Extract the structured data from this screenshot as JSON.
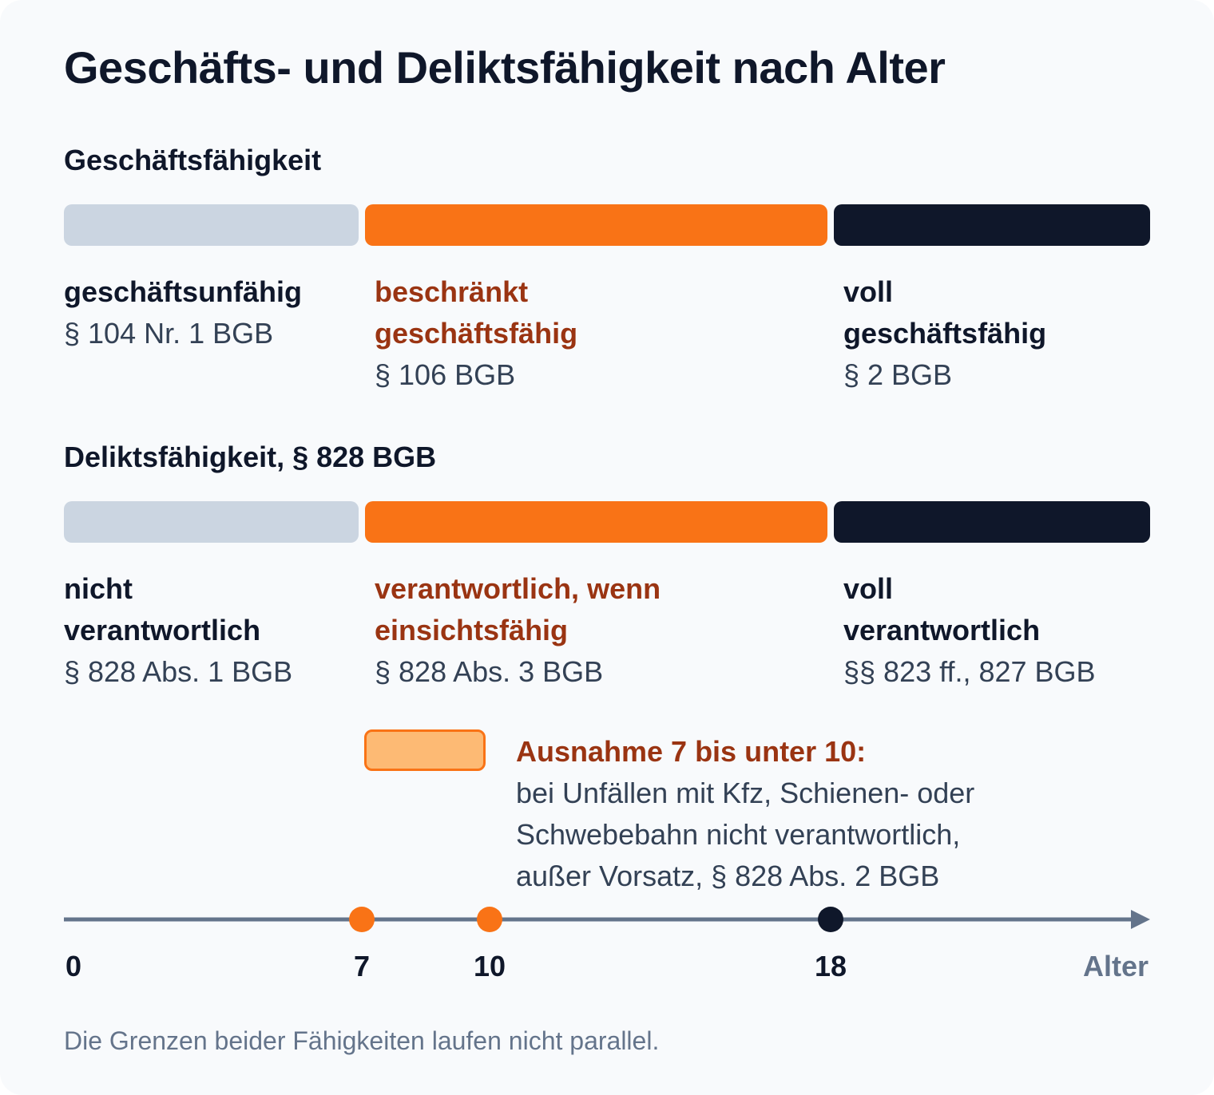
{
  "title": "Geschäfts- und Deliktsfähigkeit nach Alter",
  "colors": {
    "none": "#cbd5e1",
    "limited": "#f97316",
    "full": "#0f172a",
    "accent_text": "#9a3412",
    "exception_fill": "#fdba74",
    "axis": "#64748b"
  },
  "sections": [
    {
      "title": "Geschäftsfähigkeit",
      "stages": [
        {
          "line1": "geschäftsunfähig",
          "line2": "",
          "ref": "§ 104 Nr. 1 BGB"
        },
        {
          "line1": "beschränkt",
          "line2": "geschäftsfähig",
          "ref": "§ 106 BGB"
        },
        {
          "line1": "voll",
          "line2": "geschäftsfähig",
          "ref": "§ 2 BGB"
        }
      ]
    },
    {
      "title": "Deliktsfähigkeit, § 828 BGB",
      "stages": [
        {
          "line1": "nicht",
          "line2": "verantwortlich",
          "ref": "§ 828 Abs. 1 BGB"
        },
        {
          "line1": "verantwortlich, wenn",
          "line2": "einsichtsfähig",
          "ref": "§ 828 Abs. 3 BGB"
        },
        {
          "line1": "voll",
          "line2": "verantwortlich",
          "ref": "§§ 823 ff., 827 BGB"
        }
      ]
    }
  ],
  "exception": {
    "title": "Ausnahme 7 bis unter 10:",
    "lines": [
      "bei Unfällen mit Kfz, Schienen- oder",
      "Schwebebahn nicht verantwortlich,",
      "außer Vorsatz, § 828 Abs. 2 BGB"
    ]
  },
  "axis": {
    "label": "Alter",
    "ticks": [
      "0",
      "7",
      "10",
      "18"
    ],
    "markers": [
      {
        "age": 7,
        "color": "#f97316"
      },
      {
        "age": 10,
        "color": "#f97316"
      },
      {
        "age": 18,
        "color": "#0f172a"
      }
    ]
  },
  "footnote": "Die Grenzen beider Fähigkeiten laufen nicht parallel."
}
